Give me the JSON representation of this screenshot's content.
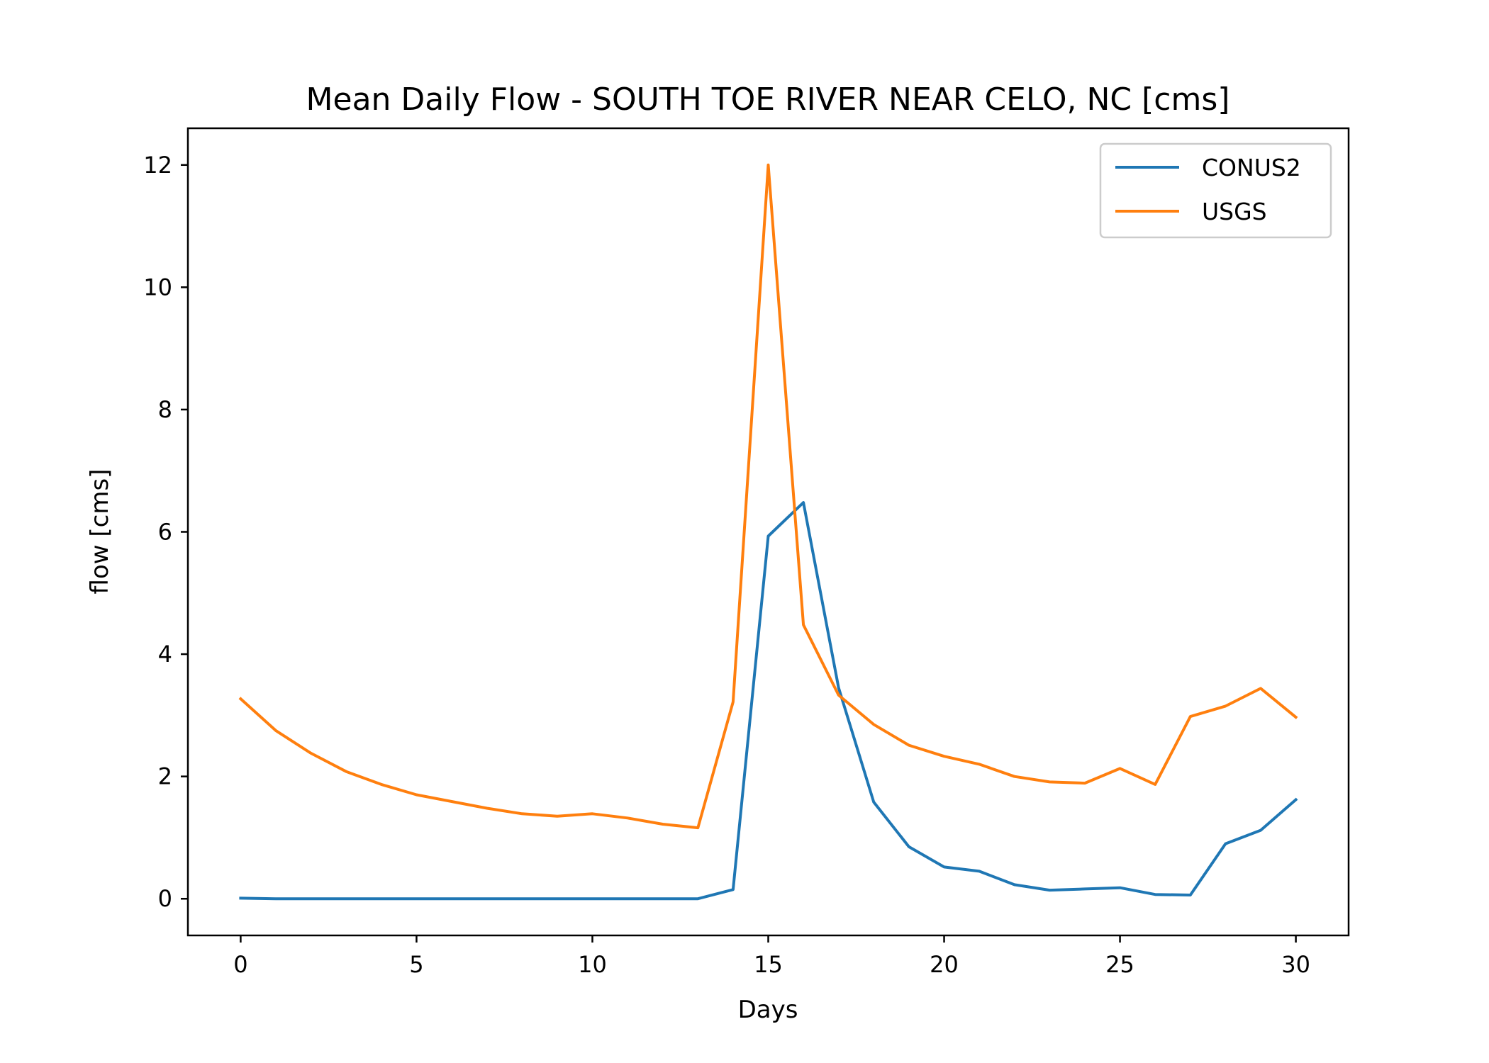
{
  "chart_data": {
    "type": "line",
    "title": "Mean Daily Flow - SOUTH TOE RIVER NEAR CELO, NC [cms]",
    "xlabel": "Days",
    "ylabel": "flow [cms]",
    "xlim": [
      -1.5,
      31.5
    ],
    "ylim": [
      -0.6,
      12.6
    ],
    "xticks": [
      0,
      5,
      10,
      15,
      20,
      25,
      30
    ],
    "yticks": [
      0,
      2,
      4,
      6,
      8,
      10,
      12
    ],
    "grid": false,
    "legend_position": "top-right",
    "x": [
      0,
      1,
      2,
      3,
      4,
      5,
      6,
      7,
      8,
      9,
      10,
      11,
      12,
      13,
      14,
      15,
      16,
      17,
      18,
      19,
      20,
      21,
      22,
      23,
      24,
      25,
      26,
      27,
      28,
      29,
      30
    ],
    "series": [
      {
        "name": "CONUS2",
        "color": "#1f77b4",
        "values": [
          0.01,
          0.0,
          0.0,
          0.0,
          0.0,
          0.0,
          0.0,
          0.0,
          0.0,
          0.0,
          0.0,
          0.0,
          0.0,
          0.0,
          0.15,
          5.93,
          6.48,
          3.45,
          1.58,
          0.85,
          0.52,
          0.45,
          0.23,
          0.14,
          0.16,
          0.18,
          0.07,
          0.06,
          0.9,
          1.12,
          1.62
        ]
      },
      {
        "name": "USGS",
        "color": "#ff7f0e",
        "values": [
          3.27,
          2.75,
          2.38,
          2.08,
          1.87,
          1.7,
          1.59,
          1.48,
          1.39,
          1.35,
          1.39,
          1.32,
          1.22,
          1.16,
          3.22,
          12.0,
          4.48,
          3.33,
          2.85,
          2.51,
          2.33,
          2.2,
          2.0,
          1.91,
          1.89,
          2.13,
          1.87,
          2.98,
          3.15,
          3.44,
          2.97
        ]
      }
    ]
  }
}
